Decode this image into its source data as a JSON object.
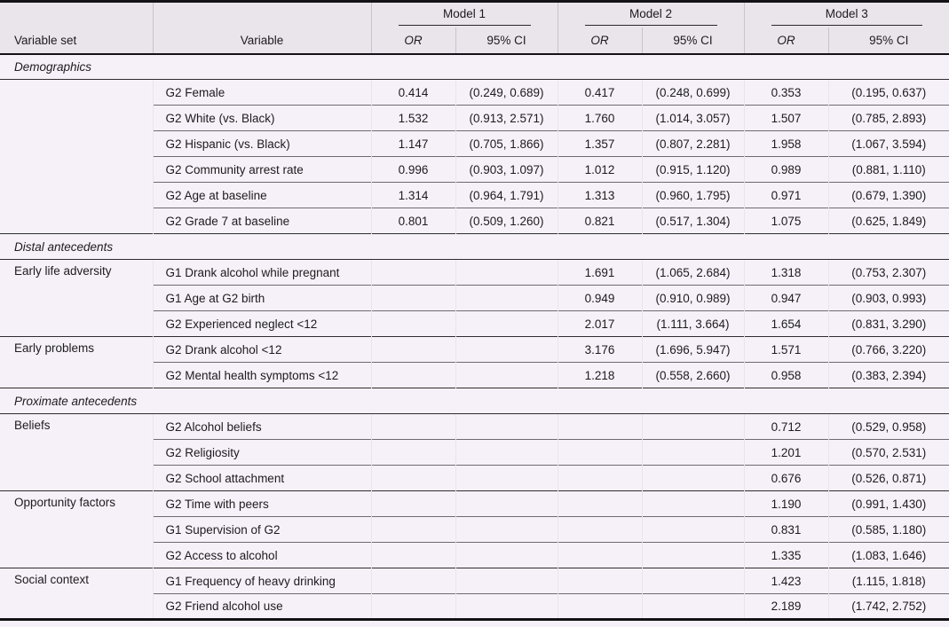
{
  "colors": {
    "header_bg": "#e9e5ea",
    "body_bg": "#f6f1f8",
    "rule_dark": "#141216",
    "rule_section": "#2f2c30",
    "rule_row": "#6f6a72"
  },
  "table": {
    "col_headers": {
      "variable_set": "Variable set",
      "variable": "Variable",
      "or": "OR",
      "ci": "95% CI"
    },
    "models": [
      "Model 1",
      "Model 2",
      "Model 3"
    ],
    "sections": [
      {
        "title": "Demographics",
        "groups": [
          {
            "label": "",
            "rows": [
              {
                "variable": "G2 Female",
                "m1_or": "0.414",
                "m1_ci": "(0.249, 0.689)",
                "m2_or": "0.417",
                "m2_ci": "(0.248, 0.699)",
                "m3_or": "0.353",
                "m3_ci": "(0.195, 0.637)"
              },
              {
                "variable": "G2 White (vs. Black)",
                "m1_or": "1.532",
                "m1_ci": "(0.913, 2.571)",
                "m2_or": "1.760",
                "m2_ci": "(1.014, 3.057)",
                "m3_or": "1.507",
                "m3_ci": "(0.785, 2.893)"
              },
              {
                "variable": "G2 Hispanic (vs. Black)",
                "m1_or": "1.147",
                "m1_ci": "(0.705, 1.866)",
                "m2_or": "1.357",
                "m2_ci": "(0.807, 2.281)",
                "m3_or": "1.958",
                "m3_ci": "(1.067, 3.594)"
              },
              {
                "variable": "G2 Community arrest rate",
                "m1_or": "0.996",
                "m1_ci": "(0.903, 1.097)",
                "m2_or": "1.012",
                "m2_ci": "(0.915, 1.120)",
                "m3_or": "0.989",
                "m3_ci": "(0.881, 1.110)"
              },
              {
                "variable": "G2 Age at baseline",
                "m1_or": "1.314",
                "m1_ci": "(0.964, 1.791)",
                "m2_or": "1.313",
                "m2_ci": "(0.960, 1.795)",
                "m3_or": "0.971",
                "m3_ci": "(0.679, 1.390)"
              },
              {
                "variable": "G2 Grade 7 at baseline",
                "m1_or": "0.801",
                "m1_ci": "(0.509, 1.260)",
                "m2_or": "0.821",
                "m2_ci": "(0.517, 1.304)",
                "m3_or": "1.075",
                "m3_ci": "(0.625, 1.849)"
              }
            ]
          }
        ]
      },
      {
        "title": "Distal antecedents",
        "groups": [
          {
            "label": "Early life adversity",
            "rows": [
              {
                "variable": "G1 Drank alcohol while pregnant",
                "m1_or": "",
                "m1_ci": "",
                "m2_or": "1.691",
                "m2_ci": "(1.065, 2.684)",
                "m3_or": "1.318",
                "m3_ci": "(0.753, 2.307)"
              },
              {
                "variable": "G1 Age at G2 birth",
                "m1_or": "",
                "m1_ci": "",
                "m2_or": "0.949",
                "m2_ci": "(0.910, 0.989)",
                "m3_or": "0.947",
                "m3_ci": "(0.903, 0.993)"
              },
              {
                "variable": "G2 Experienced neglect <12",
                "m1_or": "",
                "m1_ci": "",
                "m2_or": "2.017",
                "m2_ci": "(1.111, 3.664)",
                "m3_or": "1.654",
                "m3_ci": "(0.831, 3.290)"
              }
            ]
          },
          {
            "label": "Early problems",
            "rows": [
              {
                "variable": "G2 Drank alcohol <12",
                "m1_or": "",
                "m1_ci": "",
                "m2_or": "3.176",
                "m2_ci": "(1.696, 5.947)",
                "m3_or": "1.571",
                "m3_ci": "(0.766, 3.220)"
              },
              {
                "variable": "G2 Mental health symptoms <12",
                "m1_or": "",
                "m1_ci": "",
                "m2_or": "1.218",
                "m2_ci": "(0.558, 2.660)",
                "m3_or": "0.958",
                "m3_ci": "(0.383, 2.394)"
              }
            ]
          }
        ]
      },
      {
        "title": "Proximate antecedents",
        "groups": [
          {
            "label": "Beliefs",
            "rows": [
              {
                "variable": "G2 Alcohol beliefs",
                "m1_or": "",
                "m1_ci": "",
                "m2_or": "",
                "m2_ci": "",
                "m3_or": "0.712",
                "m3_ci": "(0.529, 0.958)"
              },
              {
                "variable": "G2 Religiosity",
                "m1_or": "",
                "m1_ci": "",
                "m2_or": "",
                "m2_ci": "",
                "m3_or": "1.201",
                "m3_ci": "(0.570, 2.531)"
              },
              {
                "variable": "G2 School attachment",
                "m1_or": "",
                "m1_ci": "",
                "m2_or": "",
                "m2_ci": "",
                "m3_or": "0.676",
                "m3_ci": "(0.526, 0.871)"
              }
            ]
          },
          {
            "label": "Opportunity factors",
            "rows": [
              {
                "variable": "G2 Time with peers",
                "m1_or": "",
                "m1_ci": "",
                "m2_or": "",
                "m2_ci": "",
                "m3_or": "1.190",
                "m3_ci": "(0.991, 1.430)"
              },
              {
                "variable": "G1 Supervision of G2",
                "m1_or": "",
                "m1_ci": "",
                "m2_or": "",
                "m2_ci": "",
                "m3_or": "0.831",
                "m3_ci": "(0.585, 1.180)"
              },
              {
                "variable": "G2 Access to alcohol",
                "m1_or": "",
                "m1_ci": "",
                "m2_or": "",
                "m2_ci": "",
                "m3_or": "1.335",
                "m3_ci": "(1.083, 1.646)"
              }
            ]
          },
          {
            "label": "Social context",
            "rows": [
              {
                "variable": "G1 Frequency of heavy drinking",
                "m1_or": "",
                "m1_ci": "",
                "m2_or": "",
                "m2_ci": "",
                "m3_or": "1.423",
                "m3_ci": "(1.115, 1.818)"
              },
              {
                "variable": "G2 Friend alcohol use",
                "m1_or": "",
                "m1_ci": "",
                "m2_or": "",
                "m2_ci": "",
                "m3_or": "2.189",
                "m3_ci": "(1.742, 2.752)"
              }
            ]
          }
        ]
      }
    ]
  }
}
